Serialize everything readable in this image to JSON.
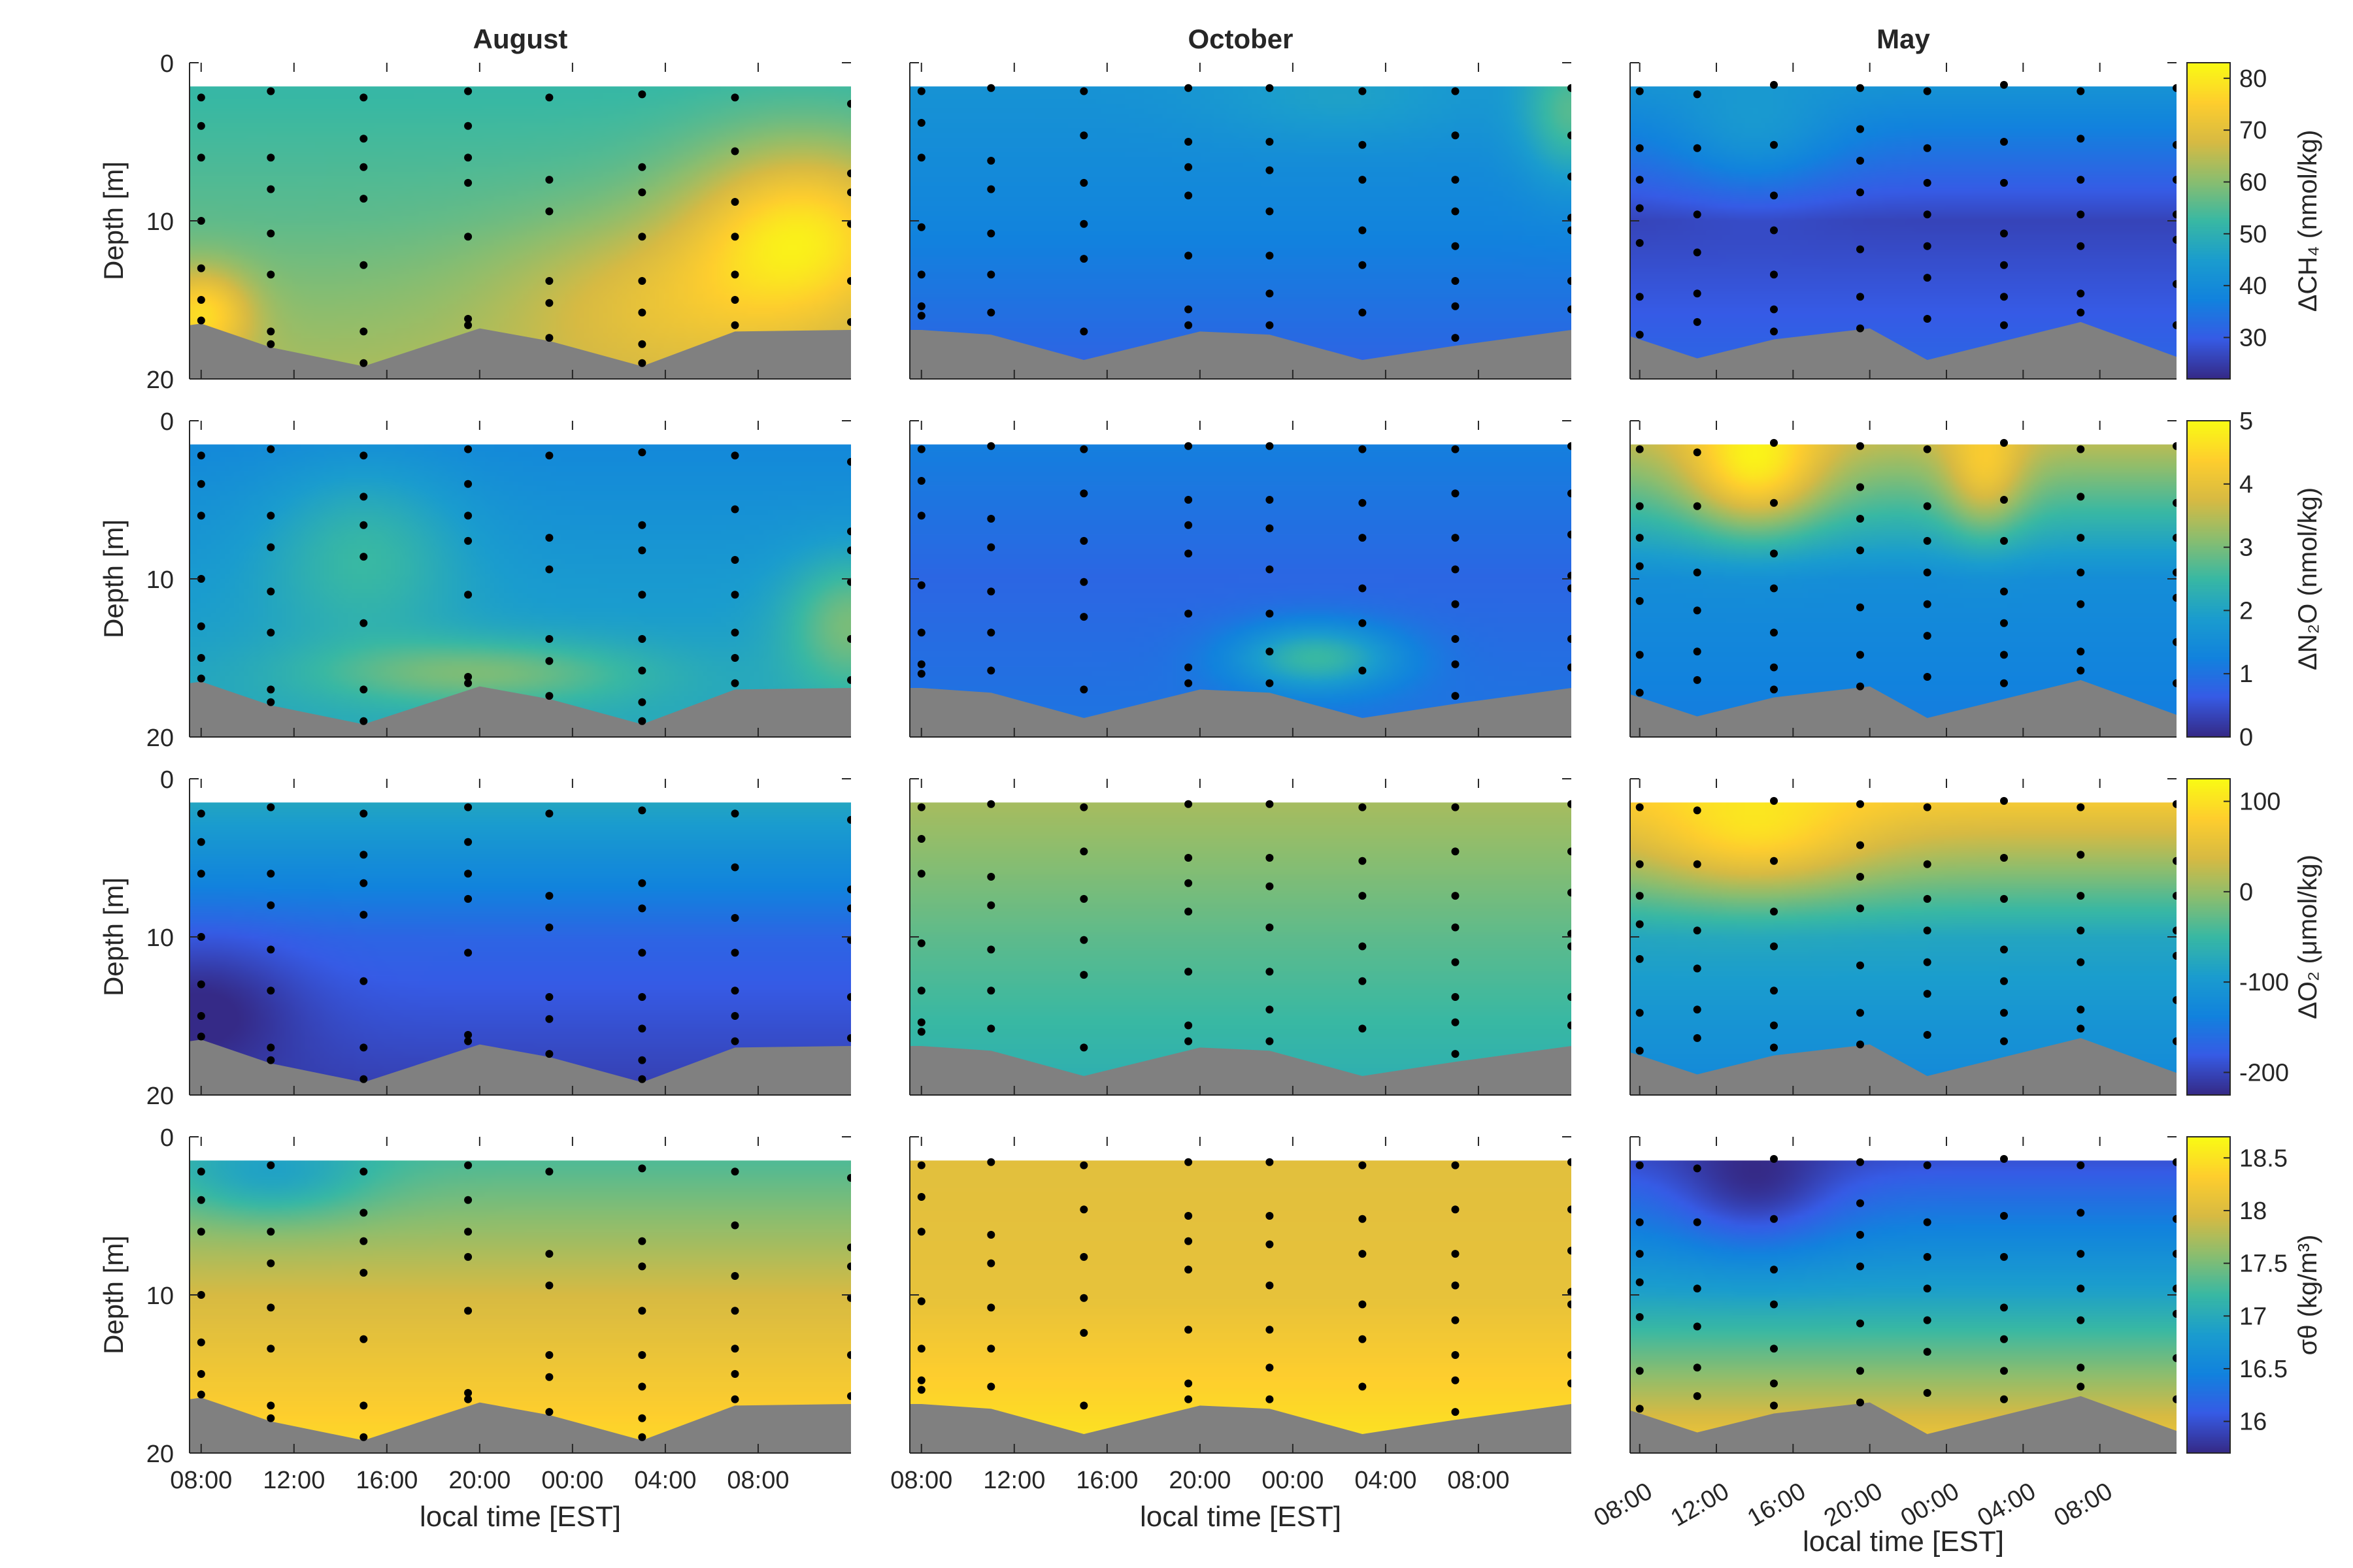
{
  "figure": {
    "columns": [
      {
        "title": "August",
        "xlabel": "local time [EST]",
        "xtick_labels": [
          "08:00",
          "12:00",
          "16:00",
          "20:00",
          "00:00",
          "04:00",
          "08:00"
        ]
      },
      {
        "title": "October",
        "xlabel": "local time [EST]",
        "xtick_labels": [
          "08:00",
          "12:00",
          "16:00",
          "20:00",
          "00:00",
          "04:00",
          "08:00"
        ]
      },
      {
        "title": "May",
        "xlabel": "local time [EST]",
        "xtick_labels": [
          "08:00",
          "12:00",
          "16:00",
          "20:00",
          "00:00",
          "04:00",
          "08:00"
        ]
      }
    ],
    "ylabel": "Depth [m]",
    "ytick_labels": [
      "0",
      "10",
      "20"
    ],
    "rows": [
      {
        "variable": "dCH4",
        "colorbar_label": "ΔCH₄ (nmol/kg)",
        "ticks": [
          "30",
          "40",
          "50",
          "60",
          "70",
          "80"
        ]
      },
      {
        "variable": "dN2O",
        "colorbar_label": "ΔN₂O (nmol/kg)",
        "ticks": [
          "0",
          "1",
          "2",
          "3",
          "4",
          "5"
        ]
      },
      {
        "variable": "dO2",
        "colorbar_label": "ΔO₂ (μmol/kg)",
        "ticks": [
          "-200",
          "-100",
          "0",
          "100"
        ]
      },
      {
        "variable": "sigma",
        "colorbar_label": "σθ (kg/m³)",
        "ticks": [
          "16",
          "16.5",
          "17",
          "17.5",
          "18",
          "18.5"
        ]
      }
    ]
  },
  "colors": {
    "colormap": "parula",
    "seafloor": "#808080",
    "sample_dots": "#000000"
  },
  "chart_data": {
    "type": "heatmap",
    "x_axis": "local time (hours from 08:00 on day 1)",
    "y_axis": "depth (m)",
    "ylim": [
      20,
      0
    ],
    "xlim": [
      -0.5,
      28
    ],
    "colorbar_ranges": {
      "dCH4": [
        22,
        83
      ],
      "dN2O": [
        0,
        5
      ],
      "dO2": [
        -225,
        125
      ],
      "sigma": [
        15.7,
        18.7
      ]
    },
    "panels": [
      {
        "row": "dCH4",
        "column": "August",
        "levels": {
          "top": 52,
          "mid": 56,
          "bottom": 62
        },
        "hotspots": [
          [
            26,
            11,
            78,
            3.5,
            4
          ],
          [
            20,
            16,
            70,
            5,
            4
          ],
          [
            0,
            16,
            78,
            1.5,
            2
          ]
        ]
      },
      {
        "row": "dCH4",
        "column": "October",
        "levels": {
          "top": 42,
          "mid": 38,
          "bottom": 32
        },
        "hotspots": [
          [
            28,
            3,
            55,
            1.5,
            3
          ],
          [
            18,
            2,
            46,
            4,
            2
          ]
        ]
      },
      {
        "row": "dCH4",
        "column": "May",
        "levels": {
          "top": 42,
          "mid": 26,
          "bottom": 31
        },
        "hotspots": [
          [
            6,
            3,
            44,
            3,
            3
          ]
        ]
      },
      {
        "row": "dN2O",
        "column": "August",
        "levels": {
          "top": 1.4,
          "mid": 1.8,
          "bottom": 2.1
        },
        "hotspots": [
          [
            28,
            13,
            3.0,
            2,
            3
          ],
          [
            7,
            9,
            2.5,
            3,
            4
          ],
          [
            12,
            16,
            3.0,
            5,
            1.5
          ]
        ]
      },
      {
        "row": "dN2O",
        "column": "October",
        "levels": {
          "top": 1.2,
          "mid": 0.8,
          "bottom": 1.0
        },
        "hotspots": [
          [
            17,
            15,
            2.5,
            2.5,
            1.5
          ]
        ]
      },
      {
        "row": "dN2O",
        "column": "May",
        "levels": {
          "top": 3.5,
          "mid": 1.5,
          "bottom": 1.2
        },
        "hotspots": [
          [
            6,
            2,
            4.9,
            2.5,
            3
          ],
          [
            18,
            2,
            4.3,
            1.5,
            3
          ]
        ]
      },
      {
        "row": "dO2",
        "column": "August",
        "levels": {
          "top": -80,
          "mid": -170,
          "bottom": -200
        },
        "hotspots": [
          [
            0,
            15,
            -230,
            3,
            3
          ]
        ]
      },
      {
        "row": "dO2",
        "column": "October",
        "levels": {
          "top": 10,
          "mid": -30,
          "bottom": -60
        },
        "hotspots": []
      },
      {
        "row": "dO2",
        "column": "May",
        "levels": {
          "top": 70,
          "mid": -80,
          "bottom": -120
        },
        "hotspots": [
          [
            6,
            2,
            105,
            4,
            3
          ]
        ]
      },
      {
        "row": "sigma",
        "column": "August",
        "levels": {
          "top": 17.3,
          "mid": 17.95,
          "bottom": 18.35
        },
        "hotspots": [
          [
            3,
            2,
            16.9,
            3,
            2
          ]
        ]
      },
      {
        "row": "sigma",
        "column": "October",
        "levels": {
          "top": 18.05,
          "mid": 18.1,
          "bottom": 18.45
        },
        "hotspots": []
      },
      {
        "row": "sigma",
        "column": "May",
        "levels": {
          "top": 16.0,
          "mid": 16.9,
          "bottom": 18.0
        },
        "hotspots": [
          [
            6,
            2,
            15.7,
            3,
            3
          ]
        ]
      }
    ],
    "seafloor": {
      "August": {
        "times": [
          -0.5,
          0,
          3,
          7,
          12,
          15,
          19,
          23,
          28
        ],
        "depths": [
          16.6,
          16.5,
          18.0,
          19.2,
          16.8,
          17.6,
          19.2,
          17.0,
          16.9
        ]
      },
      "October": {
        "times": [
          -0.5,
          0,
          3,
          7,
          12,
          15,
          19,
          23,
          28
        ],
        "depths": [
          16.9,
          16.9,
          17.2,
          18.8,
          17.0,
          17.2,
          18.8,
          17.9,
          16.9
        ]
      },
      "May": {
        "times": [
          -0.5,
          0,
          3,
          7,
          12,
          15,
          19,
          23,
          28
        ],
        "depths": [
          17.3,
          17.5,
          18.7,
          17.5,
          16.8,
          18.8,
          17.6,
          16.4,
          18.6
        ]
      }
    },
    "sample_profiles": {
      "August": [
        {
          "t": 0,
          "depths": [
            2.2,
            4.0,
            6.0,
            10.0,
            13.0,
            15.0,
            16.3
          ]
        },
        {
          "t": 3,
          "depths": [
            1.8,
            6.0,
            8.0,
            10.8,
            13.4,
            17.0,
            17.8
          ]
        },
        {
          "t": 7,
          "depths": [
            2.2,
            4.8,
            6.6,
            8.6,
            12.8,
            17.0,
            19.0
          ]
        },
        {
          "t": 11.5,
          "depths": [
            1.8,
            4.0,
            6.0,
            7.6,
            11.0,
            16.2,
            16.6
          ]
        },
        {
          "t": 15,
          "depths": [
            2.2,
            7.4,
            9.4,
            13.8,
            15.2,
            17.4
          ]
        },
        {
          "t": 19,
          "depths": [
            2.0,
            6.6,
            8.2,
            11.0,
            13.8,
            15.8,
            17.8,
            19.0
          ]
        },
        {
          "t": 23,
          "depths": [
            2.2,
            5.6,
            8.8,
            11.0,
            13.4,
            15.0,
            16.6
          ]
        },
        {
          "t": 28,
          "depths": [
            2.6,
            7.0,
            8.2,
            10.2,
            13.8,
            16.4
          ]
        }
      ],
      "October": [
        {
          "t": 0,
          "depths": [
            1.8,
            3.8,
            6.0,
            10.4,
            13.4,
            15.4,
            16.0
          ]
        },
        {
          "t": 3,
          "depths": [
            1.6,
            6.2,
            8.0,
            10.8,
            13.4,
            15.8
          ]
        },
        {
          "t": 7,
          "depths": [
            1.8,
            4.6,
            7.6,
            10.2,
            12.4,
            17.0
          ]
        },
        {
          "t": 11.5,
          "depths": [
            1.6,
            5.0,
            6.6,
            8.4,
            12.2,
            15.6,
            16.6
          ]
        },
        {
          "t": 15,
          "depths": [
            1.6,
            5.0,
            6.8,
            9.4,
            12.2,
            14.6,
            16.6
          ]
        },
        {
          "t": 19,
          "depths": [
            1.8,
            5.2,
            7.4,
            10.6,
            12.8,
            15.8
          ]
        },
        {
          "t": 23,
          "depths": [
            1.8,
            4.6,
            7.4,
            9.4,
            11.6,
            13.8,
            15.4,
            17.4
          ]
        },
        {
          "t": 28,
          "depths": [
            1.6,
            4.6,
            7.2,
            9.8,
            10.6,
            13.8,
            15.6
          ]
        }
      ],
      "May": [
        {
          "t": 0,
          "depths": [
            1.8,
            5.4,
            7.4,
            9.2,
            11.4,
            14.8,
            17.2
          ]
        },
        {
          "t": 3,
          "depths": [
            2.0,
            5.4,
            9.6,
            12.0,
            14.6,
            16.4
          ]
        },
        {
          "t": 7,
          "depths": [
            1.4,
            5.2,
            8.4,
            10.6,
            13.4,
            15.6,
            17.0
          ]
        },
        {
          "t": 11.5,
          "depths": [
            1.6,
            4.2,
            6.2,
            8.2,
            11.8,
            14.8,
            16.8
          ]
        },
        {
          "t": 15,
          "depths": [
            1.8,
            5.4,
            7.6,
            9.6,
            11.6,
            13.6,
            16.2
          ]
        },
        {
          "t": 19,
          "depths": [
            1.4,
            5.0,
            7.6,
            10.8,
            12.8,
            14.8,
            16.6
          ]
        },
        {
          "t": 23,
          "depths": [
            1.8,
            4.8,
            7.4,
            9.6,
            11.6,
            14.6,
            15.8
          ]
        },
        {
          "t": 28,
          "depths": [
            1.6,
            5.2,
            7.4,
            9.6,
            11.2,
            14.0,
            16.6
          ]
        }
      ]
    }
  }
}
